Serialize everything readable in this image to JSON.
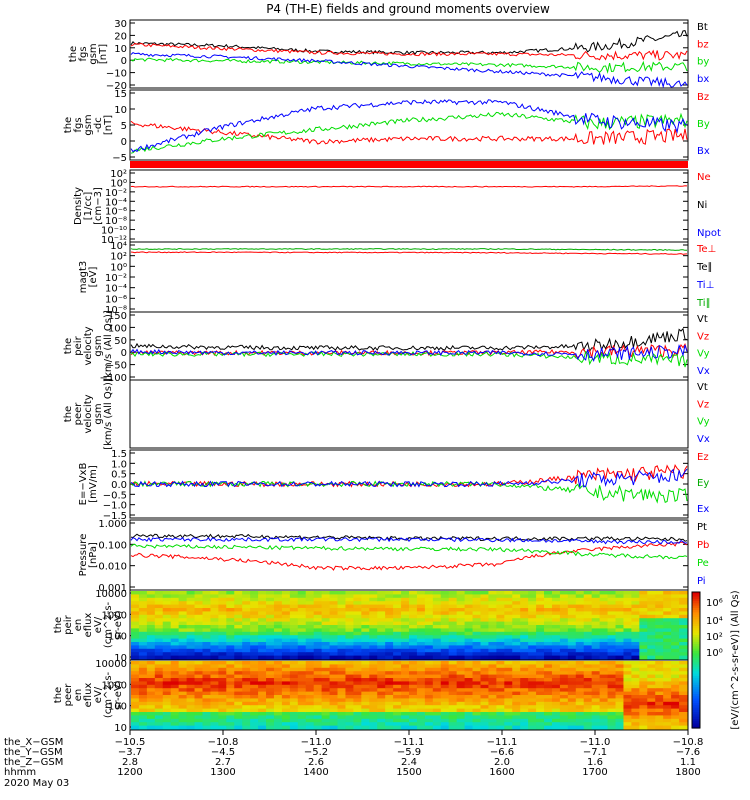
{
  "title": "P4 (TH-E) fields and ground moments overview",
  "colors": {
    "black": "#000000",
    "red": "#ff0000",
    "green": "#00dd00",
    "blue": "#0000ff",
    "darkgreen": "#00aa00"
  },
  "panels": [
    {
      "id": "fgs_gsm",
      "ylabel": [
        "the",
        "fgs",
        "gsm",
        "[nT]"
      ],
      "yticks": [
        "30",
        "20",
        "10",
        "0",
        "−10",
        "−20"
      ],
      "legend": [
        {
          "t": "Bt",
          "c": "black"
        },
        {
          "t": "bz",
          "c": "red"
        },
        {
          "t": "by",
          "c": "green"
        },
        {
          "t": "bx",
          "c": "blue"
        }
      ]
    },
    {
      "id": "fgs_gsm_dc",
      "ylabel": [
        "the",
        "fgs",
        "gsm",
        "-dc",
        "[nT]"
      ],
      "yticks": [
        "15",
        "10",
        "5",
        "0",
        "−5"
      ],
      "legend": [
        {
          "t": "Bz",
          "c": "red"
        },
        {
          "t": "By",
          "c": "green"
        },
        {
          "t": "Bx",
          "c": "blue"
        }
      ]
    },
    {
      "id": "density",
      "ylabel": [
        "Density",
        "[1/cc]",
        "[cm−3]"
      ],
      "yticks": [
        "10²",
        "10⁰",
        "10⁻²",
        "10⁻⁴",
        "10⁻⁶",
        "10⁻⁸",
        "10⁻¹⁰",
        "10⁻¹²"
      ],
      "legend": [
        {
          "t": "Ne",
          "c": "red"
        },
        {
          "t": "Ni",
          "c": "black"
        },
        {
          "t": "Npot",
          "c": "blue"
        }
      ]
    },
    {
      "id": "temp",
      "ylabel": [
        "magt3",
        "[eV]"
      ],
      "yticks": [
        "10⁴",
        "10²",
        "10⁰",
        "10⁻²",
        "10⁻⁴",
        "10⁻⁶",
        "10⁻⁸"
      ],
      "legend": [
        {
          "t": "Te⊥",
          "c": "red"
        },
        {
          "t": "Te∥",
          "c": "black"
        },
        {
          "t": "Ti⊥",
          "c": "blue"
        },
        {
          "t": "Ti∥",
          "c": "darkgreen"
        }
      ]
    },
    {
      "id": "peir_vel",
      "ylabel": [
        "the",
        "peir",
        "velocity",
        "gsm",
        "[km/s (All Qs)]"
      ],
      "yticks": [
        "150",
        "100",
        "50",
        "0",
        "−50",
        "−100"
      ],
      "legend": [
        {
          "t": "Vt",
          "c": "black"
        },
        {
          "t": "Vz",
          "c": "red"
        },
        {
          "t": "Vy",
          "c": "green"
        },
        {
          "t": "Vx",
          "c": "blue"
        }
      ]
    },
    {
      "id": "peer_vel",
      "ylabel": [
        "the",
        "peer",
        "velocity",
        "gsm",
        "[km/s (All Qs)]"
      ],
      "yticks": [],
      "legend": [
        {
          "t": "Vt",
          "c": "black"
        },
        {
          "t": "Vz",
          "c": "red"
        },
        {
          "t": "Vy",
          "c": "green"
        },
        {
          "t": "Vx",
          "c": "blue"
        }
      ]
    },
    {
      "id": "efield",
      "ylabel": [
        "E=−VxB",
        "[mV/m]"
      ],
      "yticks": [
        "1.5",
        "1.0",
        "0.5",
        "0.0",
        "−0.5",
        "−1.0",
        "−1.5"
      ],
      "legend": [
        {
          "t": "Ez",
          "c": "red"
        },
        {
          "t": "Ey",
          "c": "darkgreen"
        },
        {
          "t": "Ex",
          "c": "blue"
        }
      ]
    },
    {
      "id": "pressure",
      "ylabel": [
        "Pressure",
        "[nPa]"
      ],
      "yticks": [
        "1.000",
        "0.100",
        "0.010",
        "0.001"
      ],
      "legend": [
        {
          "t": "Pt",
          "c": "black"
        },
        {
          "t": "Pb",
          "c": "red"
        },
        {
          "t": "Pe",
          "c": "green"
        },
        {
          "t": "Pi",
          "c": "blue"
        }
      ]
    },
    {
      "id": "peir_flux",
      "ylabel": [
        "the",
        "peir",
        "en",
        "eflux",
        "eV/",
        "(cm^2-s-",
        "sr-eV)"
      ],
      "yticks": [
        "10000",
        "1000",
        "100",
        "10"
      ],
      "legend": []
    },
    {
      "id": "peer_flux",
      "ylabel": [
        "the",
        "peer",
        "en",
        "eflux",
        "eV/",
        "(cm^2-s-",
        "sr-eV)"
      ],
      "yticks": [
        "10000",
        "1000",
        "100",
        "10"
      ],
      "legend": []
    }
  ],
  "colorbar": {
    "ticks": [
      "10⁶",
      "10⁴",
      "10²",
      "10⁰"
    ],
    "label": "[eV/(cm^2-s-sr-eV)]",
    "label2": "[eV/(cm^2-s-sr-eV)] (All Qs)"
  },
  "footer": {
    "row_labels": [
      "the_X−GSM",
      "the_Y−GSM",
      "the_Z−GSM",
      "hhmm",
      "2020 May 03"
    ],
    "columns": [
      {
        "x": "−10.5",
        "y": "−3.7",
        "z": "2.8",
        "t": "1200"
      },
      {
        "x": "−10.8",
        "y": "−4.5",
        "z": "2.7",
        "t": "1300"
      },
      {
        "x": "−11.0",
        "y": "−5.2",
        "z": "2.6",
        "t": "1400"
      },
      {
        "x": "−11.1",
        "y": "−5.9",
        "z": "2.4",
        "t": "1500"
      },
      {
        "x": "−11.1",
        "y": "−6.6",
        "z": "2.0",
        "t": "1600"
      },
      {
        "x": "−11.0",
        "y": "−7.1",
        "z": "1.6",
        "t": "1700"
      },
      {
        "x": "−10.8",
        "y": "−7.6",
        "z": "1.1",
        "t": "1800"
      }
    ]
  },
  "chart_data": [
    {
      "type": "line",
      "panel": "fgs_gsm",
      "x": [
        "1200",
        "1300",
        "1400",
        "1500",
        "1600",
        "1700",
        "1800"
      ],
      "ylim": [
        -20,
        30
      ],
      "series": [
        {
          "name": "Bt",
          "values": [
            13,
            11,
            7,
            6,
            6,
            10,
            19
          ]
        },
        {
          "name": "bz",
          "values": [
            12,
            9,
            6,
            5,
            5,
            4,
            4
          ]
        },
        {
          "name": "by",
          "values": [
            1,
            0,
            -1,
            -2,
            -3,
            -5,
            -4
          ]
        },
        {
          "name": "bx",
          "values": [
            5,
            3,
            0,
            -4,
            -8,
            -12,
            -18
          ]
        }
      ]
    },
    {
      "type": "line",
      "panel": "fgs_gsm_dc",
      "x": [
        "1200",
        "1300",
        "1400",
        "1500",
        "1600",
        "1700",
        "1800"
      ],
      "ylim": [
        -7,
        16
      ],
      "series": [
        {
          "name": "Bz",
          "values": [
            5,
            2,
            -1,
            0,
            0,
            0,
            1
          ]
        },
        {
          "name": "By",
          "values": [
            -4,
            0,
            3,
            6,
            8,
            5,
            6
          ]
        },
        {
          "name": "Bx",
          "values": [
            -4,
            4,
            10,
            12,
            12,
            6,
            4
          ]
        }
      ]
    },
    {
      "type": "line",
      "panel": "density",
      "x": [
        "1200",
        "1300",
        "1400",
        "1500",
        "1600",
        "1700",
        "1800"
      ],
      "series": [
        {
          "name": "Ne",
          "values": [
            0.2,
            0.2,
            0.2,
            0.2,
            0.2,
            0.2,
            0.3
          ]
        }
      ]
    },
    {
      "type": "line",
      "panel": "temp",
      "x": [
        "1200",
        "1300",
        "1400",
        "1500",
        "1600",
        "1700",
        "1800"
      ],
      "series": [
        {
          "name": "Te⊥",
          "values": [
            900,
            900,
            800,
            800,
            700,
            500,
            400
          ]
        },
        {
          "name": "Ti∥",
          "values": [
            4000,
            4000,
            4000,
            4000,
            4000,
            3000,
            2500
          ]
        }
      ]
    },
    {
      "type": "line",
      "panel": "peir_vel",
      "x": [
        "1200",
        "1300",
        "1400",
        "1500",
        "1600",
        "1700",
        "1800"
      ],
      "ylim": [
        -100,
        150
      ],
      "series": [
        {
          "name": "Vt",
          "values": [
            25,
            20,
            18,
            18,
            18,
            25,
            70
          ]
        },
        {
          "name": "Vz",
          "values": [
            0,
            0,
            0,
            0,
            0,
            5,
            10
          ]
        },
        {
          "name": "Vy",
          "values": [
            -5,
            -5,
            -5,
            -5,
            -5,
            -20,
            -30
          ]
        },
        {
          "name": "Vx",
          "values": [
            5,
            0,
            0,
            0,
            0,
            -5,
            5
          ]
        }
      ]
    },
    {
      "type": "line",
      "panel": "efield",
      "x": [
        "1200",
        "1300",
        "1400",
        "1500",
        "1600",
        "1700",
        "1800"
      ],
      "ylim": [
        -1.6,
        1.6
      ],
      "series": [
        {
          "name": "Ez",
          "values": [
            0.0,
            0.0,
            0.0,
            0.0,
            0.0,
            0.4,
            0.6
          ]
        },
        {
          "name": "Ey",
          "values": [
            0.0,
            0.0,
            0.0,
            0.0,
            0.0,
            -0.4,
            -0.6
          ]
        },
        {
          "name": "Ex",
          "values": [
            0.0,
            0.0,
            0.0,
            0.0,
            0.0,
            0.2,
            0.4
          ]
        }
      ]
    },
    {
      "type": "line",
      "panel": "pressure",
      "x": [
        "1200",
        "1300",
        "1400",
        "1500",
        "1600",
        "1700",
        "1800"
      ],
      "series": [
        {
          "name": "Pt",
          "values": [
            0.3,
            0.28,
            0.25,
            0.22,
            0.22,
            0.22,
            0.2
          ]
        },
        {
          "name": "Pb",
          "values": [
            0.04,
            0.025,
            0.01,
            0.01,
            0.015,
            0.07,
            0.13
          ]
        },
        {
          "name": "Pe",
          "values": [
            0.1,
            0.09,
            0.08,
            0.075,
            0.07,
            0.04,
            0.03
          ]
        },
        {
          "name": "Pi",
          "values": [
            0.2,
            0.2,
            0.2,
            0.2,
            0.19,
            0.16,
            0.15
          ]
        }
      ]
    }
  ]
}
